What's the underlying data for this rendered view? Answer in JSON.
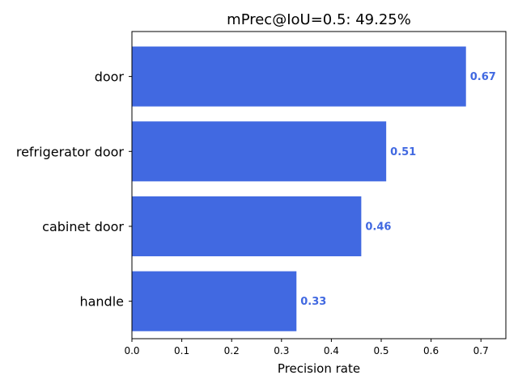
{
  "chart_data": {
    "type": "bar",
    "orientation": "horizontal",
    "title": "mPrec@IoU=0.5: 49.25%",
    "xlabel": "Precision rate",
    "ylabel": "",
    "categories": [
      "door",
      "refrigerator door",
      "cabinet door",
      "handle"
    ],
    "values": [
      0.67,
      0.51,
      0.46,
      0.33
    ],
    "value_labels": [
      "0.67",
      "0.51",
      "0.46",
      "0.33"
    ],
    "xlim": [
      0,
      0.75
    ],
    "xticks": [
      0.0,
      0.1,
      0.2,
      0.3,
      0.4,
      0.5,
      0.6,
      0.7
    ],
    "xtick_labels": [
      "0.0",
      "0.1",
      "0.2",
      "0.3",
      "0.4",
      "0.5",
      "0.6",
      "0.7"
    ],
    "grid": false,
    "bar_color": "#4169e1",
    "label_color": "#4169e1"
  }
}
